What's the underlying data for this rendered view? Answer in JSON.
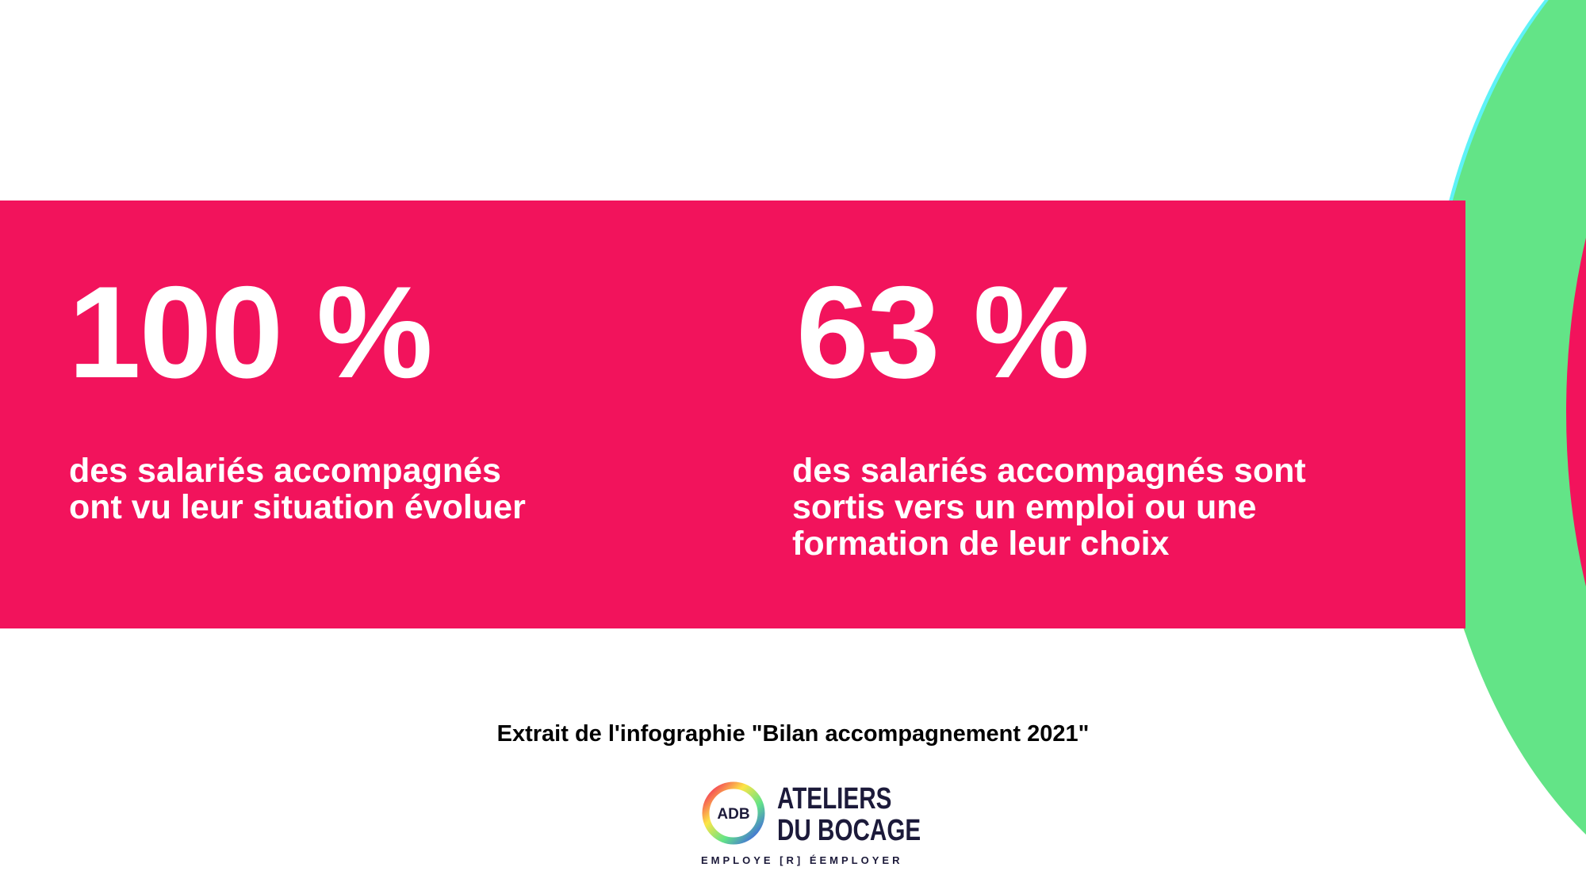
{
  "colors": {
    "band": "#f2135c",
    "cyan": "#5ef2f7",
    "green": "#63e487",
    "yellow": "#fde546",
    "text_light": "#ffffff",
    "logo_dark": "#1c1a3a"
  },
  "stats": [
    {
      "value": "100 %",
      "description": [
        "des salariés accompagnés",
        "ont vu leur situation évoluer"
      ]
    },
    {
      "value": "63 %",
      "description": [
        "des salariés accompagnés sont",
        "sortis vers un emploi ou une",
        "formation de leur choix"
      ]
    }
  ],
  "caption": "Extrait de l'infographie \"Bilan accompagnement 2021\"",
  "logo": {
    "monogram": "ADB",
    "line1": "ATELIERS",
    "line2": "DU BOCAGE",
    "tagline": "EMPLOYE [R] ÉEMPLOYER"
  }
}
